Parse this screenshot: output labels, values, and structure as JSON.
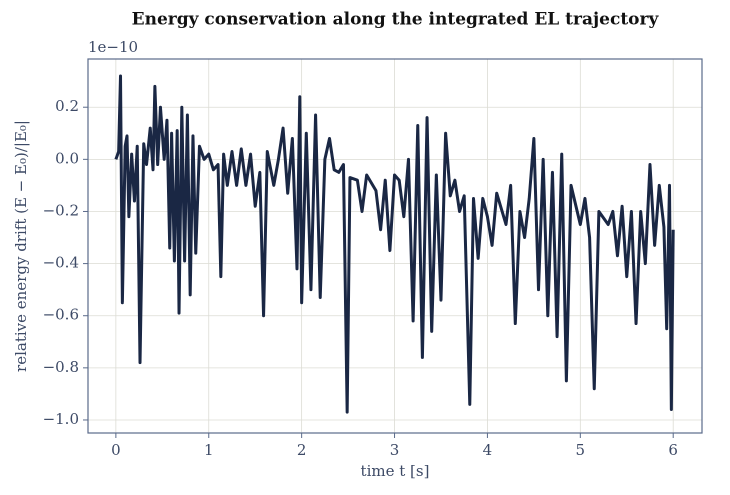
{
  "chart_data": {
    "type": "line",
    "title": "Energy conservation along the integrated EL trajectory",
    "x_label": "time  t  [s]",
    "y_label": "relative energy drift  (E − E₀)/|E₀|",
    "y_offset_text": "1e−10",
    "color": "#1a2744",
    "grid": true,
    "xlim": [
      -0.3,
      6.31
    ],
    "ylim": [
      -1.05,
      0.385
    ],
    "xticks": [
      0,
      1,
      2,
      3,
      4,
      5,
      6
    ],
    "yticks": [
      {
        "value": -1.0,
        "label": "−1.0"
      },
      {
        "value": -0.8,
        "label": "−0.8"
      },
      {
        "value": -0.6,
        "label": "−0.6"
      },
      {
        "value": -0.4,
        "label": "−0.4"
      },
      {
        "value": -0.2,
        "label": "−0.2"
      },
      {
        "value": 0,
        "label": "0.0"
      },
      0.2
    ],
    "x": [
      0,
      0.03,
      0.05,
      0.07,
      0.1,
      0.12,
      0.14,
      0.17,
      0.2,
      0.23,
      0.26,
      0.3,
      0.33,
      0.37,
      0.4,
      0.42,
      0.45,
      0.48,
      0.52,
      0.55,
      0.58,
      0.6,
      0.63,
      0.66,
      0.68,
      0.71,
      0.74,
      0.77,
      0.8,
      0.83,
      0.86,
      0.9,
      0.95,
      1.0,
      1.05,
      1.1,
      1.13,
      1.16,
      1.2,
      1.25,
      1.3,
      1.35,
      1.4,
      1.45,
      1.5,
      1.55,
      1.59,
      1.63,
      1.7,
      1.75,
      1.8,
      1.85,
      1.9,
      1.95,
      1.98,
      2.0,
      2.05,
      2.1,
      2.15,
      2.2,
      2.25,
      2.3,
      2.35,
      2.4,
      2.45,
      2.49,
      2.52,
      2.6,
      2.65,
      2.7,
      2.8,
      2.85,
      2.9,
      2.95,
      3.0,
      3.05,
      3.1,
      3.15,
      3.2,
      3.25,
      3.3,
      3.35,
      3.4,
      3.45,
      3.5,
      3.55,
      3.6,
      3.65,
      3.7,
      3.75,
      3.81,
      3.85,
      3.9,
      3.95,
      4.0,
      4.05,
      4.1,
      4.2,
      4.25,
      4.3,
      4.35,
      4.4,
      4.45,
      4.5,
      4.55,
      4.6,
      4.65,
      4.7,
      4.75,
      4.8,
      4.85,
      4.9,
      5.0,
      5.05,
      5.1,
      5.15,
      5.2,
      5.3,
      5.35,
      5.4,
      5.45,
      5.5,
      5.55,
      5.6,
      5.65,
      5.7,
      5.75,
      5.8,
      5.85,
      5.9,
      5.93,
      5.96,
      5.98,
      6.0
    ],
    "values": [
      0,
      0.03,
      0.32,
      -0.55,
      0.05,
      0.09,
      -0.22,
      0.02,
      -0.16,
      0.05,
      -0.78,
      0.06,
      -0.02,
      0.12,
      -0.04,
      0.28,
      -0.02,
      0.2,
      0.0,
      0.15,
      -0.34,
      0.1,
      -0.39,
      0.11,
      -0.59,
      0.2,
      -0.39,
      0.17,
      -0.52,
      0.09,
      -0.36,
      0.05,
      0.0,
      0.02,
      -0.04,
      -0.02,
      -0.45,
      0.02,
      -0.1,
      0.03,
      -0.1,
      0.04,
      -0.1,
      0.02,
      -0.18,
      -0.05,
      -0.6,
      0.03,
      -0.1,
      0.0,
      0.12,
      -0.13,
      0.08,
      -0.42,
      0.24,
      -0.55,
      0.1,
      -0.5,
      0.17,
      -0.53,
      0.0,
      0.08,
      -0.04,
      -0.05,
      -0.02,
      -0.97,
      -0.07,
      -0.08,
      -0.2,
      -0.06,
      -0.12,
      -0.27,
      -0.08,
      -0.35,
      -0.06,
      -0.08,
      -0.22,
      0.0,
      -0.62,
      0.13,
      -0.76,
      0.16,
      -0.66,
      -0.06,
      -0.54,
      0.1,
      -0.14,
      -0.08,
      -0.2,
      -0.14,
      -0.94,
      -0.15,
      -0.38,
      -0.15,
      -0.22,
      -0.33,
      -0.13,
      -0.25,
      -0.1,
      -0.63,
      -0.2,
      -0.3,
      -0.15,
      0.08,
      -0.5,
      0.0,
      -0.6,
      -0.05,
      -0.68,
      0.02,
      -0.85,
      -0.1,
      -0.25,
      -0.15,
      -0.3,
      -0.88,
      -0.2,
      -0.25,
      -0.2,
      -0.37,
      -0.18,
      -0.45,
      -0.2,
      -0.63,
      -0.2,
      -0.4,
      -0.02,
      -0.33,
      -0.1,
      -0.26,
      -0.65,
      -0.1,
      -0.96,
      -0.27
    ]
  }
}
